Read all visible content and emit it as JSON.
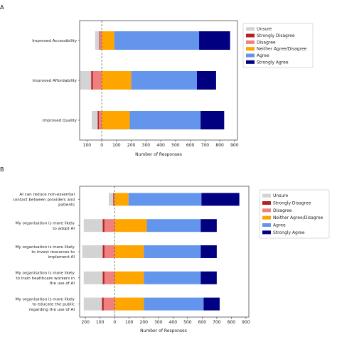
{
  "chart_data": [
    {
      "panel": "A",
      "type": "bar",
      "orientation": "horizontal",
      "stacked": "diverging",
      "categories": [
        "Improved Accessibility",
        "Improved Affordability",
        "Improved Quality"
      ],
      "series": [
        {
          "name": "Unsure",
          "color": "#d3d3d3",
          "values": [
            28,
            75,
            40
          ]
        },
        {
          "name": "Strongly Disagree",
          "color": "#b22222",
          "values": [
            5,
            12,
            8
          ]
        },
        {
          "name": "Disagree",
          "color": "#f08080",
          "values": [
            12,
            60,
            20
          ]
        },
        {
          "name": "Neither Agree/Disagree",
          "color": "#ffa500",
          "values": [
            85,
            200,
            190
          ]
        },
        {
          "name": "Agree",
          "color": "#6495ed",
          "values": [
            575,
            445,
            480
          ]
        },
        {
          "name": "Strongly Agree",
          "color": "#000080",
          "values": [
            210,
            130,
            160
          ]
        }
      ],
      "xlabel": "Number of Responses",
      "xticks": [
        "100",
        "0",
        "100",
        "200",
        "300",
        "400",
        "500",
        "600",
        "700",
        "800",
        "900"
      ],
      "xlim": [
        -150,
        920
      ],
      "zero_line": "dashed",
      "legend_position": "right"
    },
    {
      "panel": "B",
      "type": "bar",
      "orientation": "horizontal",
      "stacked": "diverging",
      "categories": [
        [
          "AI can reduce non-essential",
          "contact between providers and",
          "patients"
        ],
        [
          "My organisation is more likely",
          "to adopt AI"
        ],
        [
          "My organisation is more likely",
          "to invest resources to",
          "implement AI"
        ],
        [
          "My organisation is more likely",
          "to train healthcare workers in",
          "the use of AI"
        ],
        [
          "My organisation is more likely",
          "to educate the public",
          "regarding the use of AI"
        ]
      ],
      "series": [
        {
          "name": "Unsure",
          "color": "#d3d3d3",
          "values": [
            30,
            130,
            140,
            130,
            125
          ]
        },
        {
          "name": "Strongly Disagree",
          "color": "#b22222",
          "values": [
            5,
            12,
            12,
            12,
            12
          ]
        },
        {
          "name": "Disagree",
          "color": "#f08080",
          "values": [
            5,
            70,
            70,
            70,
            75
          ]
        },
        {
          "name": "Neither Agree/Disagree",
          "color": "#ffa500",
          "values": [
            95,
            220,
            200,
            200,
            200
          ]
        },
        {
          "name": "Agree",
          "color": "#6495ed",
          "values": [
            500,
            370,
            390,
            390,
            410
          ]
        },
        {
          "name": "Strongly Agree",
          "color": "#000080",
          "values": [
            260,
            110,
            110,
            110,
            110
          ]
        }
      ],
      "xlabel": "Number of Responses",
      "xticks": [
        "200",
        "100",
        "0",
        "100",
        "200",
        "300",
        "400",
        "500",
        "600",
        "700",
        "800",
        "900"
      ],
      "xlim": [
        -240,
        920
      ],
      "zero_line": "dashed",
      "legend_position": "right"
    }
  ],
  "legend": {
    "entries": [
      {
        "label": "Unsure",
        "color": "#d3d3d3"
      },
      {
        "label": "Strongly Disagree",
        "color": "#b22222"
      },
      {
        "label": "Disagree",
        "color": "#f08080"
      },
      {
        "label": "Neither Agree/Disagree",
        "color": "#ffa500"
      },
      {
        "label": "Agree",
        "color": "#6495ed"
      },
      {
        "label": "Strongly Agree",
        "color": "#000080"
      }
    ]
  },
  "panel_labels": [
    "A",
    "B"
  ]
}
